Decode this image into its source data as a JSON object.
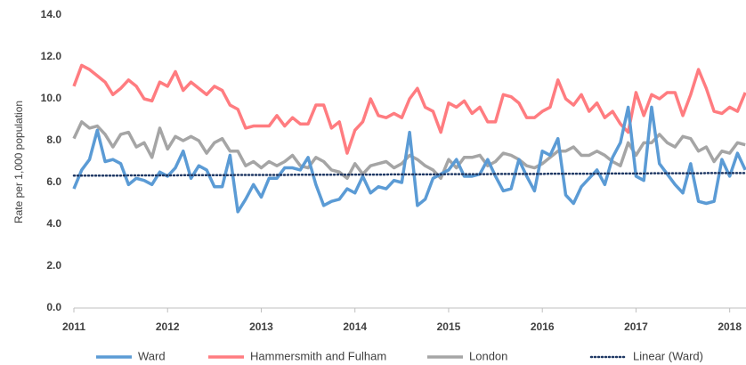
{
  "chart_data": {
    "type": "line",
    "y_label": "Rate per 1,000 population",
    "categories": [
      "2011",
      null,
      null,
      null,
      null,
      null,
      null,
      null,
      null,
      null,
      null,
      null,
      "2012",
      null,
      null,
      null,
      null,
      null,
      null,
      null,
      null,
      null,
      null,
      null,
      "2013",
      null,
      null,
      null,
      null,
      null,
      null,
      null,
      null,
      null,
      null,
      null,
      "2014",
      null,
      null,
      null,
      null,
      null,
      null,
      null,
      null,
      null,
      null,
      null,
      "2015",
      null,
      null,
      null,
      null,
      null,
      null,
      null,
      null,
      null,
      null,
      null,
      "2016",
      null,
      null,
      null,
      null,
      null,
      null,
      null,
      null,
      null,
      null,
      null,
      "2017",
      null,
      null,
      null,
      null,
      null,
      null,
      null,
      null,
      null,
      null,
      null,
      "2018",
      null,
      null
    ],
    "ylim": [
      0,
      14
    ],
    "yticks": [
      {
        "value": 0,
        "label": "0.0"
      },
      {
        "value": 2,
        "label": "2.0"
      },
      {
        "value": 4,
        "label": "4.0"
      },
      {
        "value": 6,
        "label": "6.0"
      },
      {
        "value": 8,
        "label": "8.0"
      },
      {
        "value": 10,
        "label": "10.0"
      },
      {
        "value": 12,
        "label": "12.0"
      },
      {
        "value": 14,
        "label": "14.0"
      }
    ],
    "grid": false,
    "legend": "bottom",
    "series": [
      {
        "name": "Ward",
        "color": "#5b9bd5",
        "dash": "solid",
        "values": [
          5.7,
          6.6,
          7.1,
          8.5,
          7.0,
          7.1,
          6.9,
          5.9,
          6.2,
          6.1,
          5.9,
          6.5,
          6.3,
          6.7,
          7.5,
          6.2,
          6.8,
          6.6,
          5.8,
          5.8,
          7.3,
          4.6,
          5.2,
          5.9,
          5.3,
          6.2,
          6.2,
          6.7,
          6.7,
          6.6,
          7.2,
          5.9,
          4.9,
          5.1,
          5.2,
          5.7,
          5.5,
          6.3,
          5.5,
          5.8,
          5.7,
          6.1,
          6.0,
          8.4,
          4.9,
          5.2,
          6.2,
          6.4,
          6.6,
          7.1,
          6.3,
          6.3,
          6.4,
          7.1,
          6.3,
          5.6,
          5.7,
          7.1,
          6.3,
          5.6,
          7.5,
          7.3,
          8.1,
          5.4,
          5.0,
          5.8,
          6.2,
          6.6,
          5.9,
          7.2,
          7.9,
          9.6,
          6.3,
          6.1,
          9.6,
          6.9,
          6.4,
          5.9,
          5.5,
          6.9,
          5.1,
          5.0,
          5.1,
          7.1,
          6.3,
          7.4,
          6.6
        ]
      },
      {
        "name": "Hammersmith and Fulham",
        "color": "#ff7c80",
        "dash": "solid",
        "values": [
          10.6,
          11.6,
          11.4,
          11.1,
          10.8,
          10.2,
          10.5,
          10.9,
          10.6,
          10.0,
          9.9,
          10.8,
          10.6,
          11.3,
          10.4,
          10.8,
          10.5,
          10.2,
          10.6,
          10.4,
          9.7,
          9.5,
          8.6,
          8.7,
          8.7,
          8.7,
          9.2,
          8.7,
          9.1,
          8.8,
          8.8,
          9.7,
          9.7,
          8.6,
          8.9,
          7.4,
          8.5,
          8.9,
          10.0,
          9.2,
          9.1,
          9.3,
          9.1,
          10.0,
          10.5,
          9.6,
          9.4,
          8.4,
          9.8,
          9.6,
          9.9,
          9.3,
          9.6,
          8.9,
          8.9,
          10.2,
          10.1,
          9.8,
          9.1,
          9.1,
          9.4,
          9.6,
          10.9,
          10.0,
          9.7,
          10.2,
          9.4,
          9.8,
          9.1,
          9.4,
          8.8,
          8.4,
          10.3,
          9.2,
          10.2,
          10.0,
          10.3,
          10.3,
          9.2,
          10.2,
          11.4,
          10.5,
          9.4,
          9.3,
          9.6,
          9.4,
          10.3
        ]
      },
      {
        "name": "London",
        "color": "#a5a5a5",
        "dash": "solid",
        "values": [
          8.1,
          8.9,
          8.6,
          8.7,
          8.3,
          7.7,
          8.3,
          8.4,
          7.7,
          7.9,
          7.2,
          8.6,
          7.6,
          8.2,
          8.0,
          8.2,
          8.0,
          7.4,
          7.9,
          8.1,
          7.5,
          7.5,
          6.8,
          7.0,
          6.7,
          7.0,
          6.8,
          7.0,
          7.3,
          6.8,
          6.7,
          7.2,
          7.0,
          6.6,
          6.5,
          6.2,
          6.9,
          6.4,
          6.8,
          6.9,
          7.0,
          6.7,
          6.9,
          7.3,
          7.1,
          6.8,
          6.6,
          6.2,
          7.1,
          6.7,
          7.2,
          7.2,
          7.3,
          6.8,
          7.0,
          7.4,
          7.3,
          7.1,
          6.8,
          6.7,
          6.9,
          7.2,
          7.5,
          7.5,
          7.7,
          7.3,
          7.3,
          7.5,
          7.3,
          7.0,
          6.8,
          7.9,
          7.3,
          7.9,
          7.9,
          8.3,
          7.9,
          7.7,
          8.2,
          8.1,
          7.5,
          7.7,
          7.0,
          7.5,
          7.4,
          7.9,
          7.8
        ]
      },
      {
        "name": "Linear (Ward)",
        "color": "#1f3864",
        "dash": "dotted",
        "values": [
          6.33,
          6.33,
          6.33,
          6.33,
          6.33,
          6.33,
          6.33,
          6.34,
          6.34,
          6.34,
          6.34,
          6.34,
          6.34,
          6.34,
          6.35,
          6.35,
          6.35,
          6.35,
          6.35,
          6.35,
          6.35,
          6.36,
          6.36,
          6.36,
          6.36,
          6.36,
          6.36,
          6.36,
          6.37,
          6.37,
          6.37,
          6.37,
          6.37,
          6.37,
          6.38,
          6.38,
          6.38,
          6.38,
          6.38,
          6.38,
          6.38,
          6.39,
          6.39,
          6.39,
          6.39,
          6.39,
          6.39,
          6.39,
          6.4,
          6.4,
          6.4,
          6.4,
          6.4,
          6.4,
          6.41,
          6.41,
          6.41,
          6.41,
          6.41,
          6.41,
          6.41,
          6.42,
          6.42,
          6.42,
          6.42,
          6.42,
          6.42,
          6.42,
          6.43,
          6.43,
          6.43,
          6.43,
          6.43,
          6.43,
          6.44,
          6.44,
          6.44,
          6.44,
          6.44,
          6.44,
          6.44,
          6.45,
          6.45,
          6.45,
          6.45,
          6.45,
          6.45
        ]
      }
    ]
  }
}
